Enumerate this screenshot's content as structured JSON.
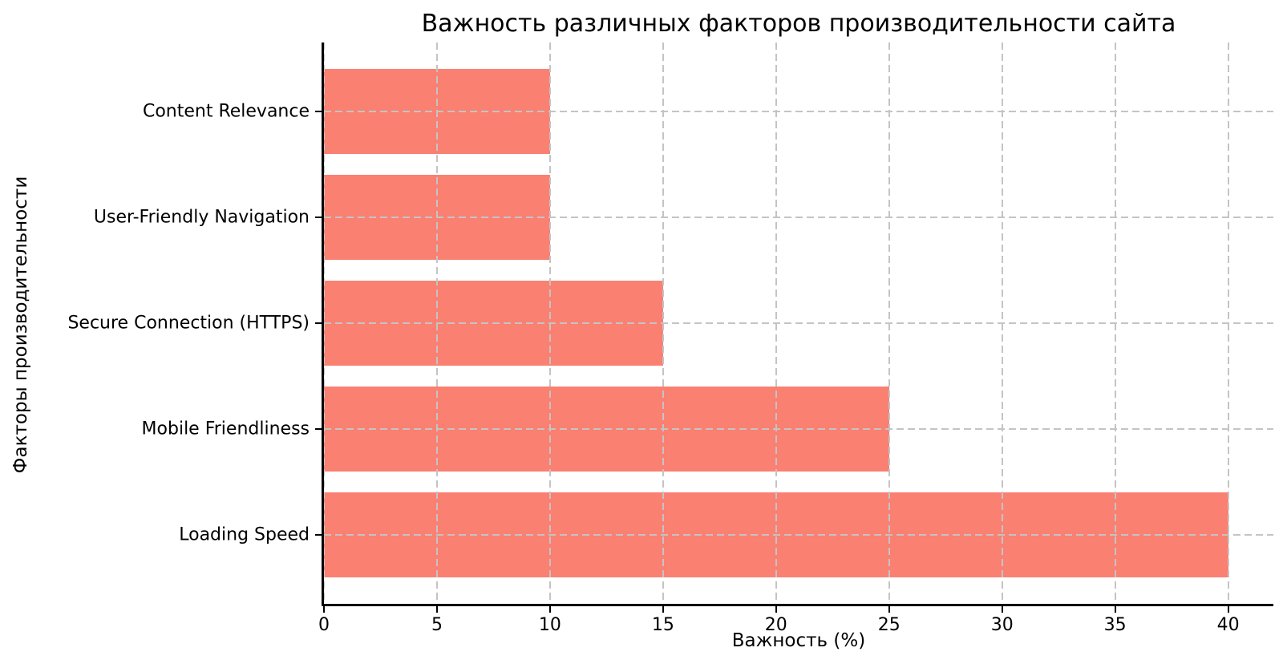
{
  "chart_data": {
    "type": "bar",
    "orientation": "horizontal",
    "title": "Важность различных факторов производительности сайта",
    "xlabel": "Важность (%)",
    "ylabel": "Факторы производительности",
    "categories": [
      "Content Relevance",
      "User-Friendly Navigation",
      "Secure Connection (HTTPS)",
      "Mobile Friendliness",
      "Loading Speed"
    ],
    "values": [
      10,
      10,
      15,
      25,
      40
    ],
    "xticks": [
      0,
      5,
      10,
      15,
      20,
      25,
      30,
      35,
      40
    ],
    "xlim": [
      0,
      42
    ],
    "bar_color": "#FA8072",
    "grid_color": "#c4c4c4",
    "grid_style": "dashed",
    "grid_axes": "both",
    "axis_color": "#000000",
    "background": "#FFFFFF",
    "legend": "none"
  }
}
